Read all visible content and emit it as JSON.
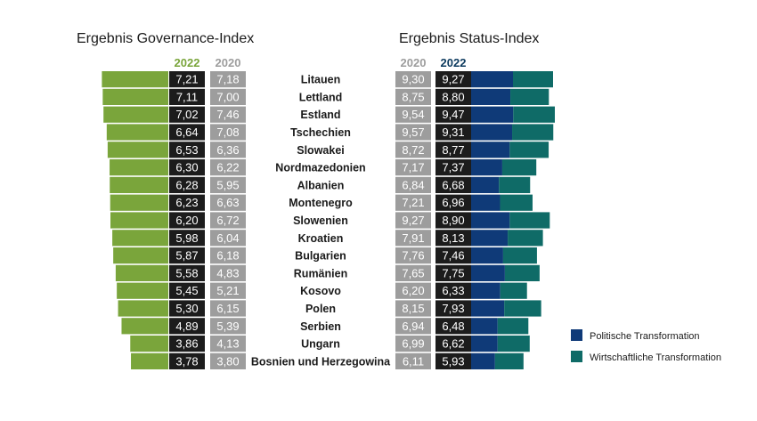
{
  "chart_data": {
    "type": "bar",
    "title_left": "Ergebnis Governance-Index",
    "title_right": "Ergebnis Status-Index",
    "governance_years": [
      "2022",
      "2020"
    ],
    "status_years": [
      "2020",
      "2022"
    ],
    "categories": [
      "Litauen",
      "Lettland",
      "Estland",
      "Tschechien",
      "Slowakei",
      "Nordmazedonien",
      "Albanien",
      "Montenegro",
      "Slowenien",
      "Kroatien",
      "Bulgarien",
      "Rumänien",
      "Kosovo",
      "Polen",
      "Serbien",
      "Ungarn",
      "Bosnien und Herzegowina"
    ],
    "governance_2022": [
      "7,21",
      "7,11",
      "7,02",
      "6,64",
      "6,53",
      "6,30",
      "6,28",
      "6,23",
      "6,20",
      "5,98",
      "5,87",
      "5,58",
      "5,45",
      "5,30",
      "4,89",
      "3,86",
      "3,78"
    ],
    "governance_2020": [
      "7,18",
      "7,00",
      "7,46",
      "7,08",
      "6,36",
      "6,22",
      "5,95",
      "6,63",
      "6,72",
      "6,04",
      "6,18",
      "4,83",
      "5,21",
      "6,15",
      "5,39",
      "4,13",
      "3,80"
    ],
    "status_2020": [
      "9,30",
      "8,75",
      "9,54",
      "9,57",
      "8,72",
      "7,17",
      "6,84",
      "7,21",
      "9,27",
      "7,91",
      "7,76",
      "7,65",
      "6,20",
      "8,15",
      "6,94",
      "6,99",
      "6,11"
    ],
    "status_2022": [
      "9,27",
      "8,80",
      "9,47",
      "9,31",
      "8,77",
      "7,37",
      "6,68",
      "6,96",
      "8,90",
      "8,13",
      "7,46",
      "7,75",
      "6,33",
      "7,93",
      "6,48",
      "6,62",
      "5,93"
    ],
    "governance_values": [
      7.21,
      7.11,
      7.02,
      6.64,
      6.53,
      6.3,
      6.28,
      6.23,
      6.2,
      5.98,
      5.87,
      5.58,
      5.45,
      5.3,
      4.89,
      3.86,
      3.78
    ],
    "series": [
      {
        "name": "Politische Transformation",
        "values": [
          9.55,
          8.95,
          9.6,
          9.35,
          8.8,
          7.1,
          6.35,
          6.6,
          8.8,
          8.35,
          7.3,
          7.7,
          6.65,
          7.55,
          6.05,
          6.05,
          5.45
        ]
      },
      {
        "name": "Wirtschaftliche Transformation",
        "values": [
          9.0,
          8.65,
          9.35,
          9.25,
          8.75,
          7.65,
          7.0,
          7.3,
          9.0,
          7.9,
          7.6,
          7.8,
          6.0,
          8.3,
          6.9,
          7.2,
          6.4
        ]
      }
    ],
    "legend": {
      "position": "bottom-right"
    },
    "colors": {
      "governance_bar": "#7aa53b",
      "year_2022_gov": "#7aa53b",
      "year_2020": "#9d9d9d",
      "year_2022_status": "#0c3a5e",
      "black_cell": "#1c1c1c",
      "gray_cell": "#9d9d9d",
      "political": "#0f3a78",
      "economic": "#0f6b67"
    }
  }
}
